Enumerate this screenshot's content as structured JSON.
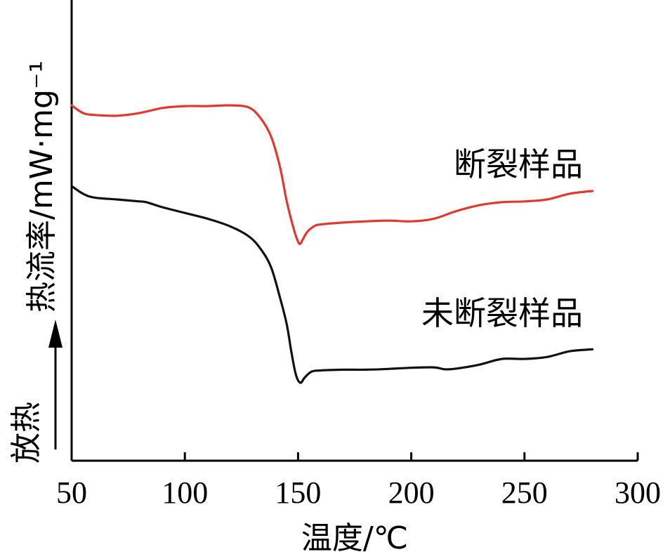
{
  "chart_data": {
    "type": "line",
    "xlabel": "温度/℃",
    "ylabel": "热流率/mW·mg⁻¹",
    "exo_label": "放热",
    "xlim": [
      50,
      300
    ],
    "xticks": [
      50,
      100,
      150,
      200,
      250,
      300
    ],
    "tick_labels": [
      "50",
      "100",
      "150",
      "200",
      "250",
      "300"
    ],
    "grid": false,
    "legend": "inline labels",
    "series": [
      {
        "name": "断裂样品",
        "color": "#e03a2f",
        "x": [
          50,
          55,
          60,
          70,
          80,
          90,
          100,
          110,
          120,
          128,
          133,
          138,
          142,
          145,
          148,
          150,
          151,
          152,
          154,
          157,
          160,
          170,
          180,
          190,
          200,
          210,
          220,
          230,
          240,
          250,
          260,
          270,
          280
        ],
        "y": [
          0.72,
          0.7,
          0.695,
          0.693,
          0.7,
          0.713,
          0.718,
          0.718,
          0.72,
          0.715,
          0.69,
          0.64,
          0.56,
          0.47,
          0.4,
          0.365,
          0.36,
          0.37,
          0.39,
          0.405,
          0.41,
          0.415,
          0.418,
          0.42,
          0.418,
          0.425,
          0.445,
          0.46,
          0.468,
          0.47,
          0.475,
          0.49,
          0.497
        ]
      },
      {
        "name": "未断裂样品",
        "color": "#111111",
        "x": [
          50,
          55,
          60,
          70,
          80,
          83,
          90,
          100,
          110,
          120,
          128,
          133,
          138,
          142,
          145,
          147,
          149,
          151,
          153,
          156,
          160,
          170,
          180,
          190,
          200,
          210,
          215,
          220,
          230,
          240,
          250,
          260,
          270,
          280
        ],
        "y": [
          0.51,
          0.49,
          0.48,
          0.475,
          0.47,
          0.468,
          0.455,
          0.44,
          0.425,
          0.405,
          0.38,
          0.35,
          0.3,
          0.22,
          0.15,
          0.08,
          0.02,
          -0.002,
          0.012,
          0.027,
          0.03,
          0.032,
          0.032,
          0.034,
          0.037,
          0.038,
          0.033,
          0.035,
          0.045,
          0.06,
          0.06,
          0.065,
          0.08,
          0.085
        ]
      }
    ]
  }
}
